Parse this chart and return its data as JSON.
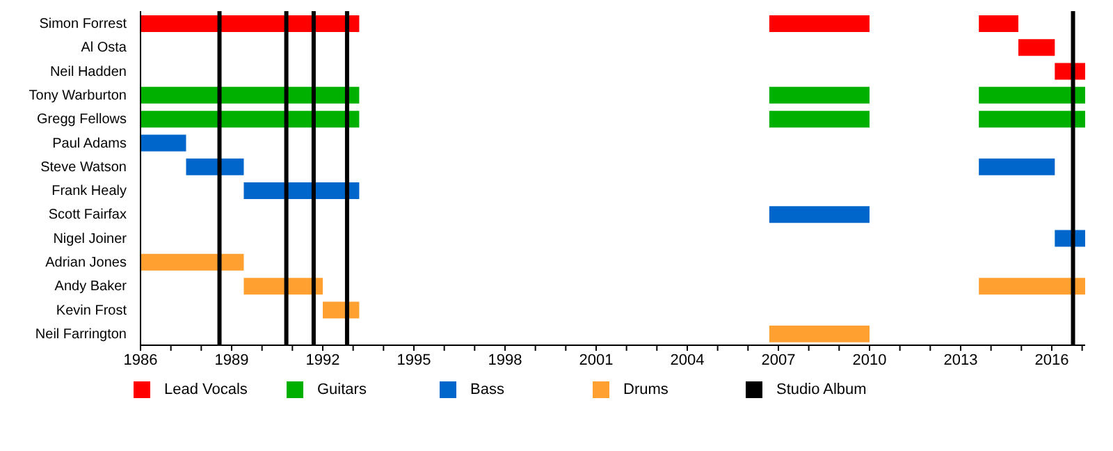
{
  "chart_data": {
    "type": "bar",
    "orientation": "horizontal",
    "categories": [
      "Simon Forrest",
      "Al Osta",
      "Neil Hadden",
      "Tony Warburton",
      "Gregg Fellows",
      "Paul Adams",
      "Steve Watson",
      "Frank Healy",
      "Scott Fairfax",
      "Nigel Joiner",
      "Adrian Jones",
      "Andy Baker",
      "Kevin Frost",
      "Neil Farrington"
    ],
    "series": [
      {
        "name": "Lead Vocals",
        "color": "#ff0000",
        "base": [
          1986,
          2014.9,
          2016.1,
          null,
          null,
          null,
          null,
          null,
          null,
          null,
          null,
          null,
          null,
          null
        ],
        "values": [
          7.2,
          1.2,
          1.0,
          null,
          null,
          null,
          null,
          null,
          null,
          null,
          null,
          null,
          null,
          null
        ]
      },
      {
        "color": "#ff0000",
        "base": [
          2006.7,
          null,
          null,
          null,
          null,
          null,
          null,
          null,
          null,
          null,
          null,
          null,
          null,
          null
        ],
        "values": [
          3.3,
          null,
          null,
          null,
          null,
          null,
          null,
          null,
          null,
          null,
          null,
          null,
          null,
          null
        ]
      },
      {
        "color": "#ff0000",
        "base": [
          2013.6,
          null,
          null,
          null,
          null,
          null,
          null,
          null,
          null,
          null,
          null,
          null,
          null,
          null
        ],
        "values": [
          1.3,
          null,
          null,
          null,
          null,
          null,
          null,
          null,
          null,
          null,
          null,
          null,
          null,
          null
        ]
      },
      {
        "name": "Guitars",
        "color": "#00b000",
        "base": [
          null,
          null,
          null,
          1986,
          1986,
          null,
          null,
          null,
          null,
          null,
          null,
          null,
          null,
          null
        ],
        "values": [
          null,
          null,
          null,
          7.2,
          7.2,
          null,
          null,
          null,
          null,
          null,
          null,
          null,
          null,
          null
        ]
      },
      {
        "color": "#00b000",
        "base": [
          null,
          null,
          null,
          2006.7,
          2006.7,
          null,
          null,
          null,
          null,
          null,
          null,
          null,
          null,
          null
        ],
        "values": [
          null,
          null,
          null,
          3.3,
          3.3,
          null,
          null,
          null,
          null,
          null,
          null,
          null,
          null,
          null
        ]
      },
      {
        "color": "#00b000",
        "base": [
          null,
          null,
          null,
          2013.6,
          2013.6,
          null,
          null,
          null,
          null,
          null,
          null,
          null,
          null,
          null
        ],
        "values": [
          null,
          null,
          null,
          3.5,
          3.5,
          null,
          null,
          null,
          null,
          null,
          null,
          null,
          null,
          null
        ]
      },
      {
        "name": "Bass",
        "color": "#0066cc",
        "base": [
          null,
          null,
          null,
          null,
          null,
          1986,
          1987.5,
          1989.4,
          2006.7,
          2016.1,
          null,
          null,
          null,
          null
        ],
        "values": [
          null,
          null,
          null,
          null,
          null,
          1.5,
          1.9,
          3.8,
          3.3,
          1.0,
          null,
          null,
          null,
          null
        ]
      },
      {
        "color": "#0066cc",
        "base": [
          null,
          null,
          null,
          null,
          null,
          null,
          2013.6,
          null,
          null,
          null,
          null,
          null,
          null,
          null
        ],
        "values": [
          null,
          null,
          null,
          null,
          null,
          null,
          2.5,
          null,
          null,
          null,
          null,
          null,
          null,
          null
        ]
      },
      {
        "name": "Drums",
        "color": "#ffa030",
        "base": [
          null,
          null,
          null,
          null,
          null,
          null,
          null,
          null,
          null,
          null,
          1986,
          1989.4,
          1992.0,
          2006.7
        ],
        "values": [
          null,
          null,
          null,
          null,
          null,
          null,
          null,
          null,
          null,
          null,
          3.4,
          2.6,
          1.2,
          3.3
        ]
      },
      {
        "color": "#ffa030",
        "base": [
          null,
          null,
          null,
          null,
          null,
          null,
          null,
          null,
          null,
          null,
          null,
          2013.6,
          null,
          null
        ],
        "values": [
          null,
          null,
          null,
          null,
          null,
          null,
          null,
          null,
          null,
          null,
          null,
          3.5,
          null,
          null
        ]
      }
    ],
    "ref_lines": [
      {
        "axis": "x",
        "value": 1988.6,
        "label": "Studio Album",
        "color": "#000000"
      },
      {
        "axis": "x",
        "value": 1990.8,
        "color": "#000000"
      },
      {
        "axis": "x",
        "value": 1991.7,
        "color": "#000000"
      },
      {
        "axis": "x",
        "value": 1992.8,
        "color": "#000000"
      },
      {
        "axis": "x",
        "value": 2016.7,
        "color": "#000000"
      }
    ],
    "xlim": [
      1986,
      2017.1
    ],
    "xticks": [
      1986,
      {
        "value": 1987,
        "label": null
      },
      {
        "value": 1988,
        "label": null
      },
      1989,
      {
        "value": 1990,
        "label": null
      },
      {
        "value": 1991,
        "label": null
      },
      1992,
      {
        "value": 1993,
        "label": null
      },
      {
        "value": 1994,
        "label": null
      },
      1995,
      {
        "value": 1996,
        "label": null
      },
      {
        "value": 1997,
        "label": null
      },
      1998,
      {
        "value": 1999,
        "label": null
      },
      {
        "value": 2000,
        "label": null
      },
      2001,
      {
        "value": 2002,
        "label": null
      },
      {
        "value": 2003,
        "label": null
      },
      2004,
      {
        "value": 2005,
        "label": null
      },
      {
        "value": 2006,
        "label": null
      },
      2007,
      {
        "value": 2008,
        "label": null
      },
      {
        "value": 2009,
        "label": null
      },
      2010,
      {
        "value": 2011,
        "label": null
      },
      {
        "value": 2012,
        "label": null
      },
      2013,
      {
        "value": 2014,
        "label": null
      },
      {
        "value": 2015,
        "label": null
      },
      2016,
      {
        "value": 2017,
        "label": null
      }
    ],
    "grid": false,
    "legend": "bottom"
  }
}
